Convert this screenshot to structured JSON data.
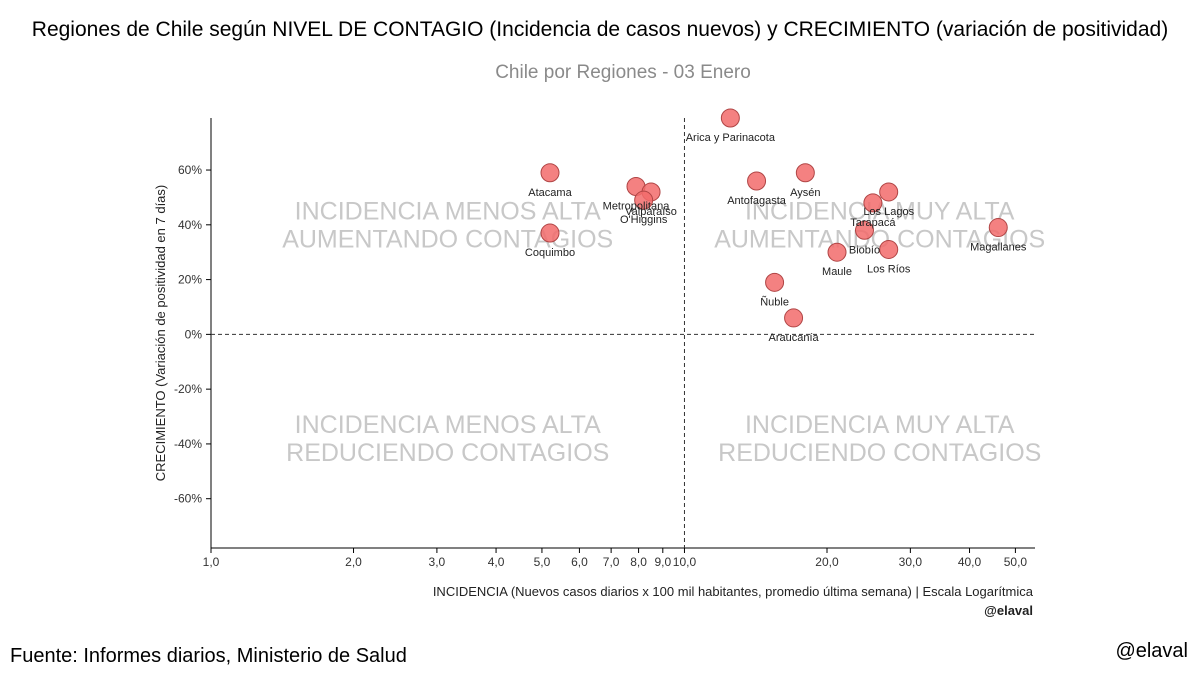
{
  "header": {
    "title": "Regiones de Chile según NIVEL DE CONTAGIO (Incidencia de casos nuevos) y CRECIMIENTO (variación de positividad)"
  },
  "footer": {
    "source": "Fuente: Informes diarios, Ministerio de Salud",
    "handle": "@elaval"
  },
  "chart_data": {
    "type": "scatter",
    "subtitle": "Chile por Regiones - 03 Enero",
    "xlabel": "INCIDENCIA (Nuevos casos diarios x 100 mil habitantes, promedio última semana) | Escala Logarítmica",
    "ylabel": "CRECIMIENTO (Variación de positividad en 7 días)",
    "credit": "@elaval",
    "x_scale": "log",
    "xlim": [
      1,
      55
    ],
    "ylim": [
      -0.78,
      0.79
    ],
    "x_ticks": [
      1,
      2,
      3,
      4,
      5,
      6,
      7,
      8,
      9,
      10,
      20,
      30,
      40,
      50
    ],
    "x_tick_labels": [
      "1,0",
      "2,0",
      "3,0",
      "4,0",
      "5,0",
      "6,0",
      "7,0",
      "8,0",
      "9,0",
      "10,0",
      "20,0",
      "30,0",
      "40,0",
      "50,0"
    ],
    "y_ticks": [
      -0.6,
      -0.4,
      -0.2,
      0,
      0.2,
      0.4,
      0.6
    ],
    "y_tick_labels": [
      "-60%",
      "-40%",
      "-20%",
      "0%",
      "20%",
      "40%",
      "60%"
    ],
    "reference_lines": {
      "x": 10,
      "y": 0
    },
    "quadrant_labels": [
      {
        "position": "top-left",
        "lines": [
          "INCIDENCIA MENOS ALTA",
          "AUMENTANDO CONTAGIOS"
        ]
      },
      {
        "position": "top-right",
        "lines": [
          "INCIDENCIA MUY ALTA",
          "AUMENTANDO CONTAGIOS"
        ]
      },
      {
        "position": "bottom-left",
        "lines": [
          "INCIDENCIA MENOS ALTA",
          "REDUCIENDO CONTAGIOS"
        ]
      },
      {
        "position": "bottom-right",
        "lines": [
          "INCIDENCIA MUY ALTA",
          "REDUCIENDO CONTAGIOS"
        ]
      }
    ],
    "marker_color": "#f26b6b",
    "marker_stroke": "#b04545",
    "points": [
      {
        "label": "Arica y Parinacota",
        "x": 12.5,
        "y": 0.79
      },
      {
        "label": "Atacama",
        "x": 5.2,
        "y": 0.59
      },
      {
        "label": "Coquimbo",
        "x": 5.2,
        "y": 0.37
      },
      {
        "label": "Metropolitana",
        "x": 7.9,
        "y": 0.54
      },
      {
        "label": "Valparaíso",
        "x": 8.5,
        "y": 0.52
      },
      {
        "label": "O'Higgins",
        "x": 8.2,
        "y": 0.49
      },
      {
        "label": "Antofagasta",
        "x": 14.2,
        "y": 0.56
      },
      {
        "label": "Aysén",
        "x": 18.0,
        "y": 0.59
      },
      {
        "label": "Tarapacá",
        "x": 25.0,
        "y": 0.48
      },
      {
        "label": "Los Lagos",
        "x": 27.0,
        "y": 0.52
      },
      {
        "label": "Biobío",
        "x": 24.0,
        "y": 0.38
      },
      {
        "label": "Maule",
        "x": 21.0,
        "y": 0.3
      },
      {
        "label": "Los Ríos",
        "x": 27.0,
        "y": 0.31
      },
      {
        "label": "Magallanes",
        "x": 46.0,
        "y": 0.39
      },
      {
        "label": "Ñuble",
        "x": 15.5,
        "y": 0.19
      },
      {
        "label": "Araucanía",
        "x": 17.0,
        "y": 0.06
      }
    ]
  }
}
